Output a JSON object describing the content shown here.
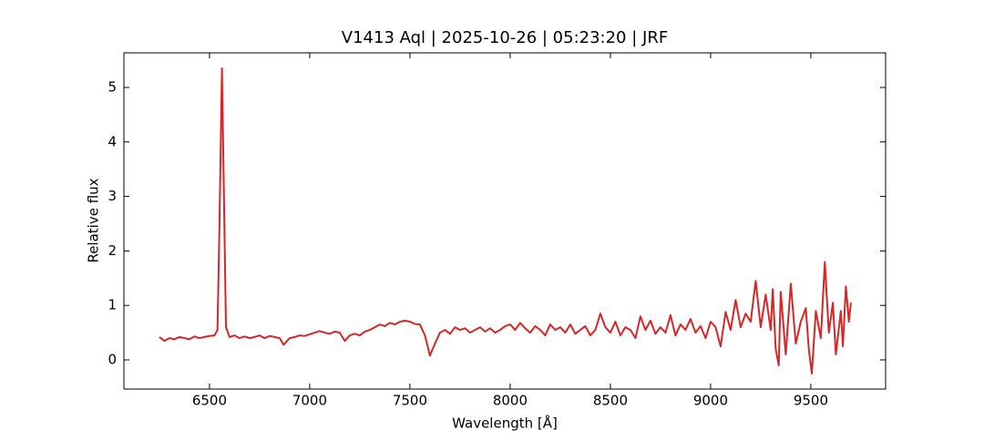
{
  "chart_data": {
    "type": "line",
    "title": "V1413 Aql | 2025-10-26 | 05:23:20 | JRF",
    "x_label": "Wavelength [Å]",
    "y_label": "Relative flux",
    "xlim": [
      6073,
      9873
    ],
    "ylim": [
      -0.535,
      5.635
    ],
    "xticks": [
      6500,
      7000,
      7500,
      8000,
      8500,
      9000,
      9500
    ],
    "yticks": [
      0,
      1,
      2,
      3,
      4,
      5
    ],
    "series": [
      {
        "color": "#d62728",
        "x": [
          6250,
          6275,
          6300,
          6325,
          6350,
          6375,
          6400,
          6425,
          6450,
          6475,
          6500,
          6525,
          6540,
          6550,
          6562,
          6572,
          6582,
          6600,
          6625,
          6650,
          6675,
          6700,
          6725,
          6750,
          6775,
          6800,
          6825,
          6850,
          6870,
          6900,
          6925,
          6950,
          6975,
          7000,
          7025,
          7050,
          7075,
          7100,
          7125,
          7150,
          7175,
          7200,
          7225,
          7250,
          7275,
          7300,
          7325,
          7350,
          7375,
          7400,
          7425,
          7450,
          7475,
          7500,
          7525,
          7550,
          7575,
          7600,
          7625,
          7650,
          7675,
          7700,
          7725,
          7750,
          7775,
          7800,
          7825,
          7850,
          7875,
          7900,
          7925,
          7950,
          7975,
          8000,
          8025,
          8050,
          8075,
          8100,
          8125,
          8150,
          8175,
          8200,
          8225,
          8250,
          8275,
          8300,
          8325,
          8350,
          8375,
          8400,
          8425,
          8450,
          8475,
          8500,
          8525,
          8550,
          8575,
          8600,
          8625,
          8650,
          8675,
          8700,
          8725,
          8750,
          8775,
          8800,
          8825,
          8850,
          8875,
          8900,
          8925,
          8950,
          8975,
          9000,
          9025,
          9050,
          9075,
          9100,
          9125,
          9150,
          9175,
          9200,
          9225,
          9250,
          9275,
          9300,
          9310,
          9325,
          9340,
          9350,
          9375,
          9400,
          9425,
          9450,
          9475,
          9490,
          9505,
          9525,
          9550,
          9570,
          9590,
          9610,
          9625,
          9650,
          9660,
          9675,
          9690,
          9700
        ],
        "values": [
          0.42,
          0.35,
          0.4,
          0.38,
          0.42,
          0.4,
          0.38,
          0.43,
          0.4,
          0.42,
          0.44,
          0.45,
          0.55,
          2.5,
          5.35,
          3.0,
          0.6,
          0.42,
          0.45,
          0.4,
          0.43,
          0.4,
          0.42,
          0.45,
          0.4,
          0.44,
          0.42,
          0.4,
          0.28,
          0.4,
          0.42,
          0.45,
          0.44,
          0.47,
          0.5,
          0.53,
          0.5,
          0.48,
          0.52,
          0.5,
          0.35,
          0.45,
          0.48,
          0.45,
          0.52,
          0.55,
          0.6,
          0.65,
          0.62,
          0.68,
          0.65,
          0.7,
          0.72,
          0.7,
          0.66,
          0.65,
          0.45,
          0.08,
          0.3,
          0.5,
          0.55,
          0.48,
          0.6,
          0.55,
          0.58,
          0.5,
          0.55,
          0.6,
          0.52,
          0.58,
          0.5,
          0.55,
          0.62,
          0.65,
          0.55,
          0.68,
          0.58,
          0.5,
          0.62,
          0.55,
          0.45,
          0.65,
          0.55,
          0.6,
          0.5,
          0.65,
          0.48,
          0.55,
          0.62,
          0.45,
          0.55,
          0.85,
          0.6,
          0.5,
          0.7,
          0.45,
          0.6,
          0.55,
          0.4,
          0.8,
          0.55,
          0.72,
          0.48,
          0.6,
          0.5,
          0.82,
          0.45,
          0.65,
          0.55,
          0.75,
          0.5,
          0.62,
          0.4,
          0.7,
          0.6,
          0.25,
          0.88,
          0.55,
          1.1,
          0.6,
          0.85,
          0.7,
          1.45,
          0.6,
          1.2,
          0.55,
          1.3,
          0.2,
          -0.1,
          1.25,
          0.1,
          1.4,
          0.3,
          0.7,
          0.95,
          0.2,
          -0.25,
          0.9,
          0.4,
          1.8,
          0.5,
          1.05,
          0.1,
          0.9,
          0.25,
          1.35,
          0.7,
          1.05
        ]
      }
    ]
  }
}
